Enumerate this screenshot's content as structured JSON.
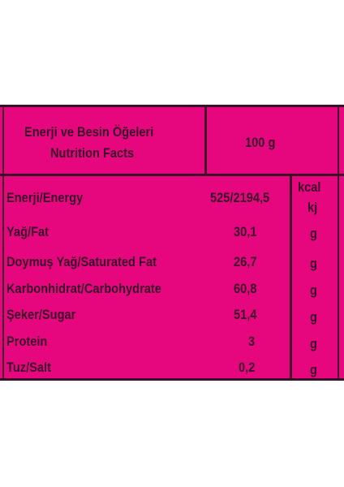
{
  "header": {
    "title_tr": "Enerji ve Besin Öğeleri",
    "title_en": "Nutrition Facts",
    "amount": "100 g"
  },
  "rows": [
    {
      "name": "Enerji/Energy",
      "value": "525/2194,5",
      "unit": "kcal",
      "unit2": "kj"
    },
    {
      "name": "Yağ/Fat",
      "value": "30,1",
      "unit": "g"
    },
    {
      "name": "Doymuş Yağ/Saturated Fat",
      "value": "26,7",
      "unit": "g"
    },
    {
      "name": "Karbonhidrat/Carbohydrate",
      "value": "60,8",
      "unit": "g"
    },
    {
      "name": "Şeker/Sugar",
      "value": "51,4",
      "unit": "g"
    },
    {
      "name": "Protein",
      "value": "3",
      "unit": "g"
    },
    {
      "name": "Tuz/Salt",
      "value": "0,2",
      "unit": "g"
    }
  ],
  "colors": {
    "background": "#e6077e",
    "lines": "#3d0f28",
    "text": "#3a0a2a"
  }
}
